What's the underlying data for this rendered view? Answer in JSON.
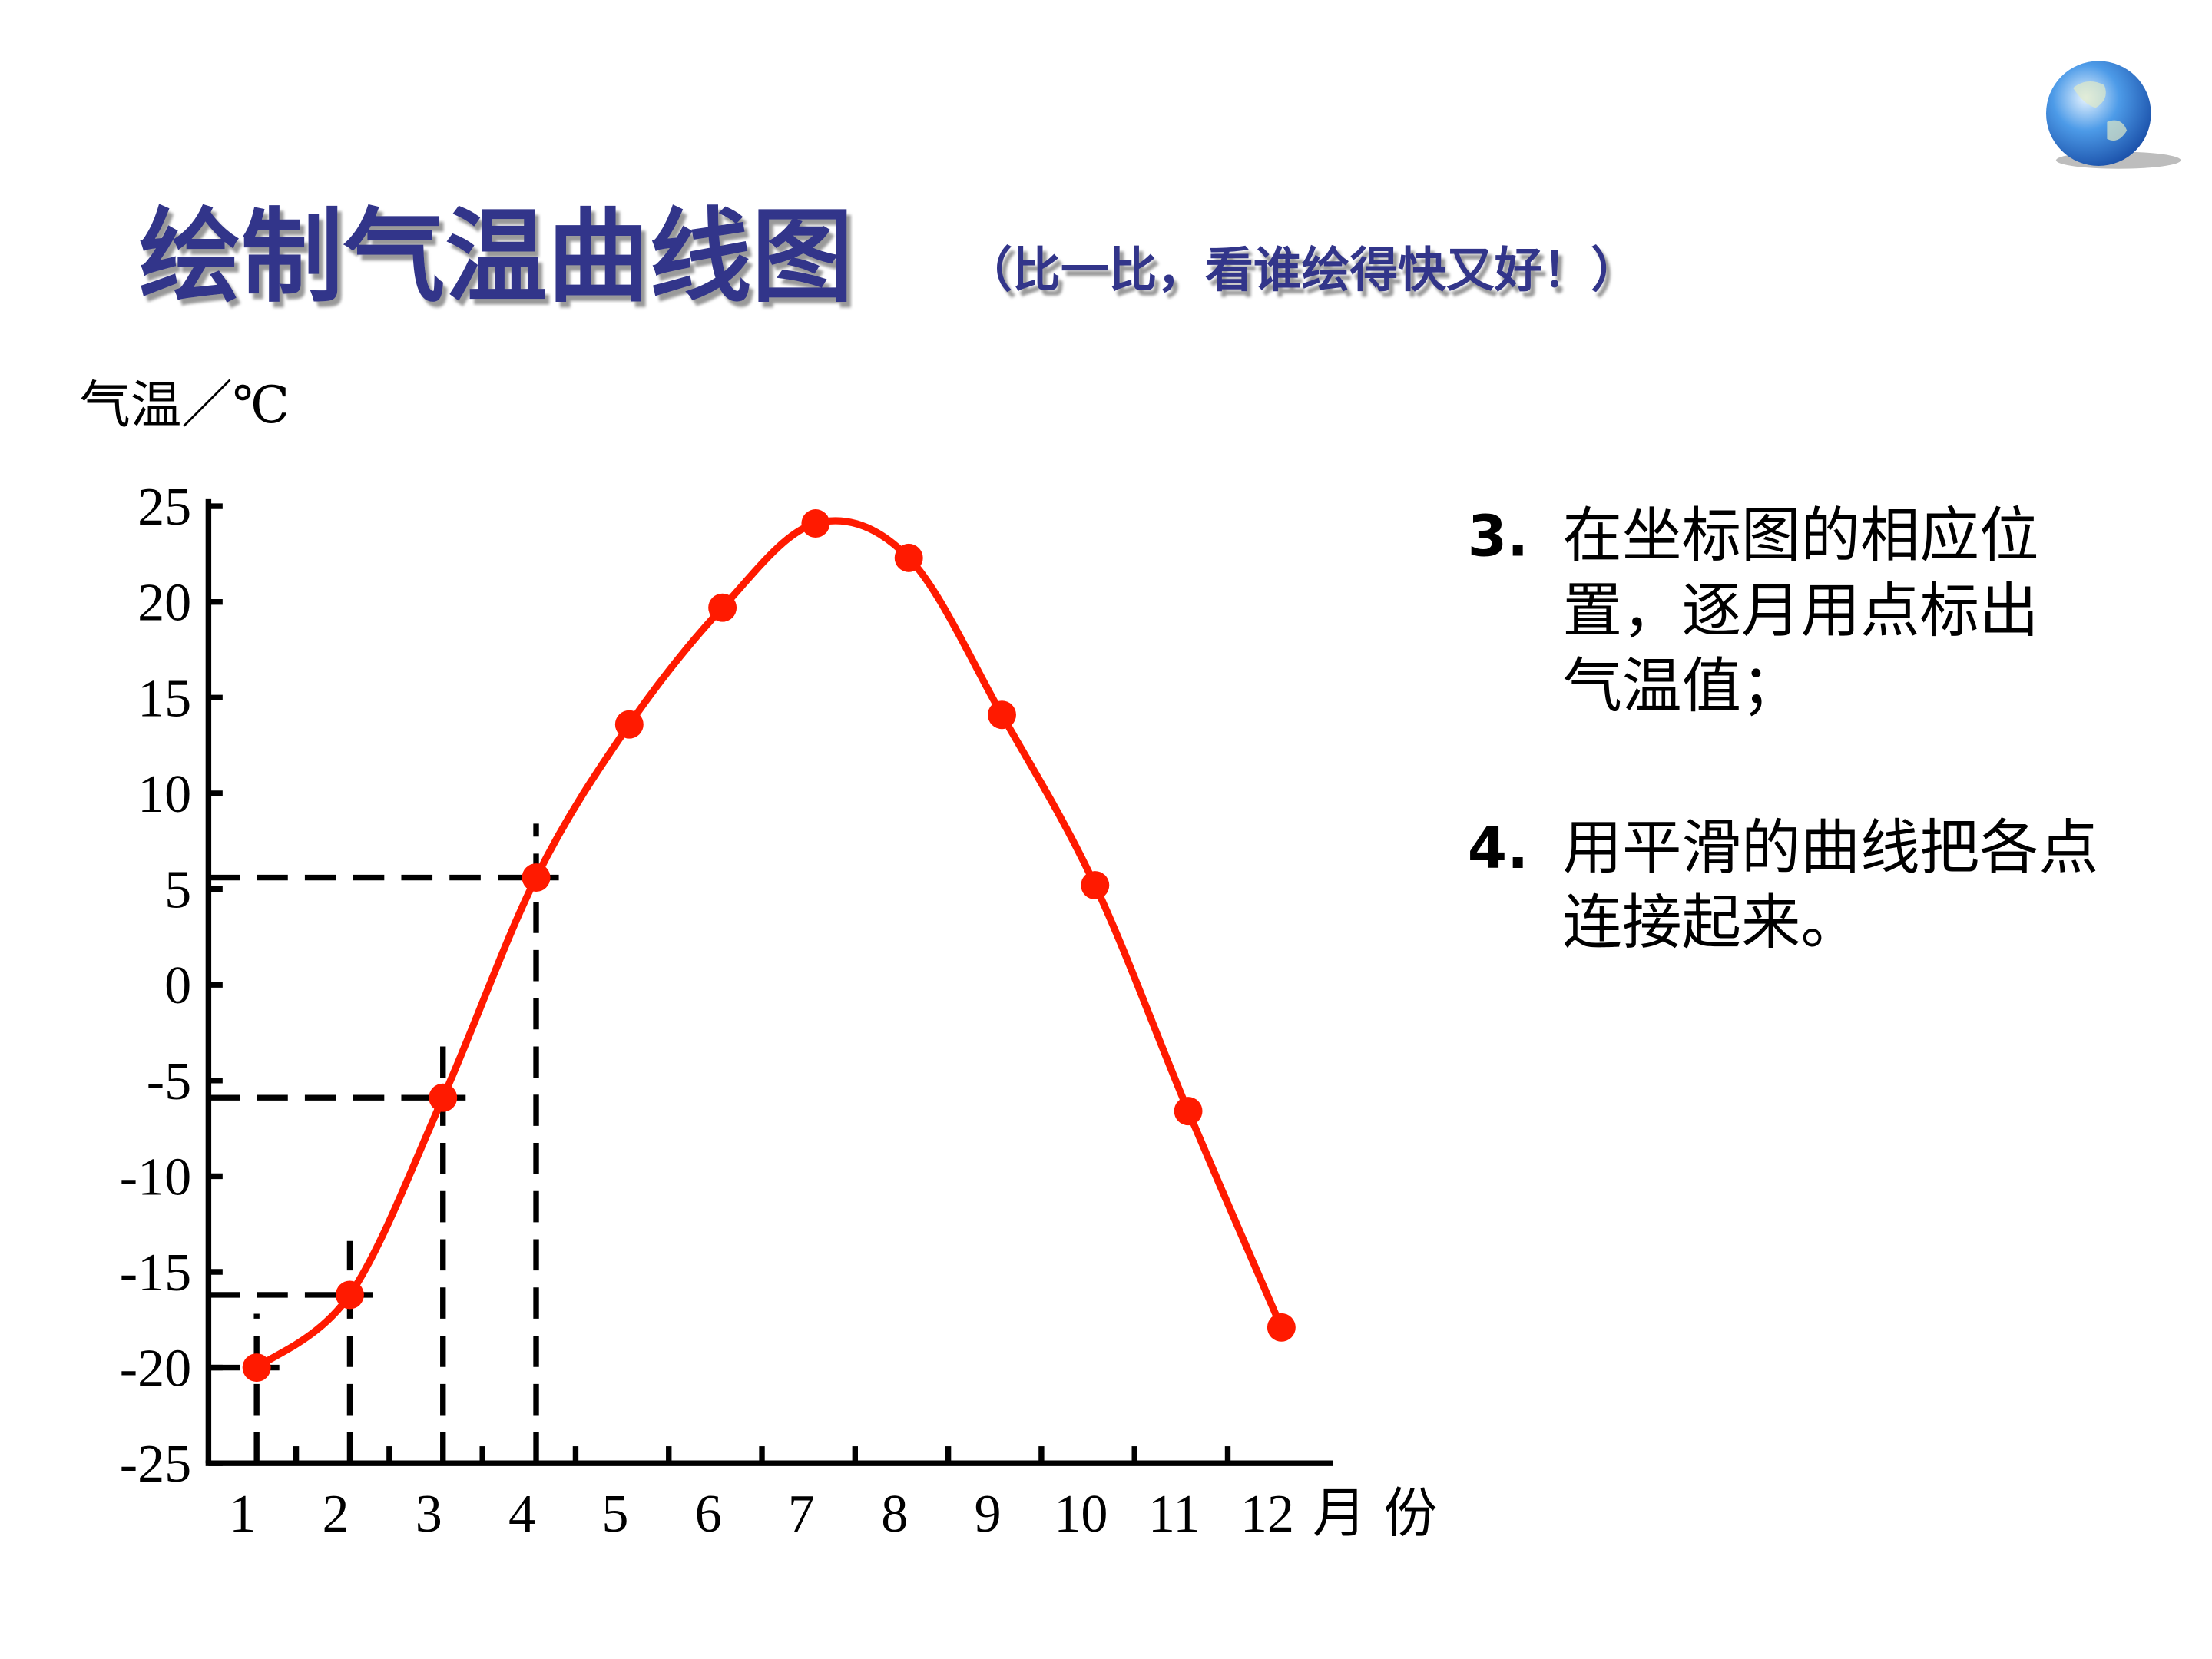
{
  "chart_data": {
    "type": "line",
    "title": "绘制气温曲线图",
    "subtitle": "（比一比，看谁绘得快又好！）",
    "y_label": "气温／℃",
    "x_label": "月份",
    "categories": [
      "1",
      "2",
      "3",
      "4",
      "5",
      "6",
      "7",
      "8",
      "9",
      "10",
      "11",
      "12"
    ],
    "values": [
      -20,
      -16.2,
      -5.9,
      5.6,
      13.6,
      19.7,
      24.1,
      22.3,
      14.1,
      5.2,
      -6.6,
      -17.9
    ],
    "color": "#ff1a00",
    "ylim": [
      -25,
      25
    ],
    "yticks": [
      -25,
      -20,
      -15,
      -10,
      -5,
      0,
      5,
      10,
      15,
      20,
      25
    ],
    "smooth": true
  },
  "notes": [
    {
      "label": "3.",
      "lines": [
        "在坐标图的相应位",
        "置，逐月用点标出",
        "气温值；"
      ]
    },
    {
      "label": "4.",
      "lines": [
        "用平滑的曲线把各点",
        "连接起来。"
      ]
    }
  ]
}
